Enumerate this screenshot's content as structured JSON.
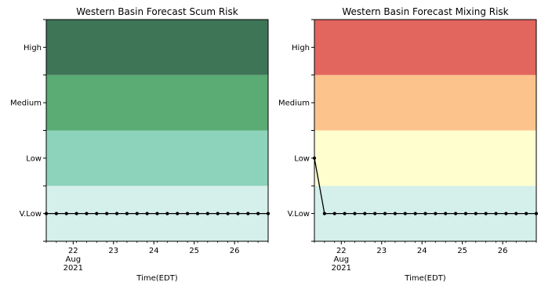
{
  "chart_data": [
    {
      "type": "line",
      "title": "Western Basin Forecast Scum Risk",
      "xlabel": "Time(EDT)",
      "ylabel": "",
      "y_categories": [
        "V.Low",
        "Low",
        "Medium",
        "High"
      ],
      "ylim": [
        -0.5,
        3.5
      ],
      "xlim": [
        0,
        5.5
      ],
      "x_ticks": [
        {
          "x": 0.667,
          "label": "22"
        },
        {
          "x": 1.667,
          "label": "23"
        },
        {
          "x": 2.667,
          "label": "24"
        },
        {
          "x": 3.667,
          "label": "25"
        },
        {
          "x": 4.667,
          "label": "26"
        }
      ],
      "x_sublabel": {
        "month": "Aug",
        "year": "2021"
      },
      "bands": [
        {
          "level": "V.Low",
          "color": "#d5efea"
        },
        {
          "level": "Low",
          "color": "#8dd3bb"
        },
        {
          "level": "Medium",
          "color": "#5aab74"
        },
        {
          "level": "High",
          "color": "#3e7556"
        }
      ],
      "series": [
        {
          "x": [
            0,
            0.25,
            0.5,
            0.75,
            1.0,
            1.25,
            1.5,
            1.75,
            2.0,
            2.25,
            2.5,
            2.75,
            3.0,
            3.25,
            3.5,
            3.75,
            4.0,
            4.25,
            4.5,
            4.75,
            5.0,
            5.25,
            5.5
          ],
          "values": [
            0,
            0,
            0,
            0,
            0,
            0,
            0,
            0,
            0,
            0,
            0,
            0,
            0,
            0,
            0,
            0,
            0,
            0,
            0,
            0,
            0,
            0,
            0
          ]
        }
      ]
    },
    {
      "type": "line",
      "title": "Western Basin Forecast Mixing Risk",
      "xlabel": "Time(EDT)",
      "ylabel": "",
      "y_categories": [
        "V.Low",
        "Low",
        "Medium",
        "High"
      ],
      "ylim": [
        -0.5,
        3.5
      ],
      "xlim": [
        0,
        5.5
      ],
      "x_ticks": [
        {
          "x": 0.667,
          "label": "22"
        },
        {
          "x": 1.667,
          "label": "23"
        },
        {
          "x": 2.667,
          "label": "24"
        },
        {
          "x": 3.667,
          "label": "25"
        },
        {
          "x": 4.667,
          "label": "26"
        }
      ],
      "x_sublabel": {
        "month": "Aug",
        "year": "2021"
      },
      "bands": [
        {
          "level": "V.Low",
          "color": "#d5efea"
        },
        {
          "level": "Low",
          "color": "#fefece"
        },
        {
          "level": "Medium",
          "color": "#fdc38c"
        },
        {
          "level": "High",
          "color": "#e2665d"
        }
      ],
      "series": [
        {
          "x": [
            0,
            0.25,
            0.5,
            0.75,
            1.0,
            1.25,
            1.5,
            1.75,
            2.0,
            2.25,
            2.5,
            2.75,
            3.0,
            3.25,
            3.5,
            3.75,
            4.0,
            4.25,
            4.5,
            4.75,
            5.0,
            5.25,
            5.5
          ],
          "values": [
            1,
            0,
            0,
            0,
            0,
            0,
            0,
            0,
            0,
            0,
            0,
            0,
            0,
            0,
            0,
            0,
            0,
            0,
            0,
            0,
            0,
            0,
            0
          ]
        }
      ]
    }
  ]
}
